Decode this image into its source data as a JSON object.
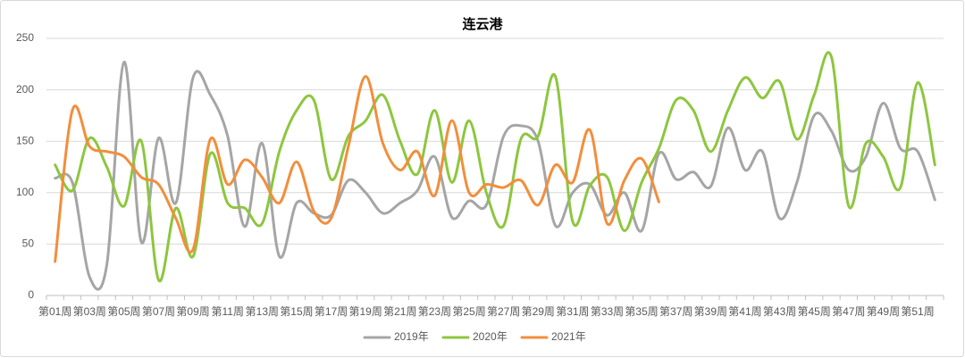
{
  "chart_data": {
    "type": "line",
    "title": "连云港",
    "categories": [
      "第01周",
      null,
      "第03周",
      null,
      "第05周",
      null,
      "第07周",
      null,
      "第09周",
      null,
      "第11周",
      null,
      "第13周",
      null,
      "第15周",
      null,
      "第17周",
      null,
      "第19周",
      null,
      "第21周",
      null,
      "第23周",
      null,
      "第25周",
      null,
      "第27周",
      null,
      "第29周",
      null,
      "第31周",
      null,
      "第33周",
      null,
      "第35周",
      null,
      "第37周",
      null,
      "第39周",
      null,
      "第41周",
      null,
      "第43周",
      null,
      "第45周",
      null,
      "第47周",
      null,
      "第49周",
      null,
      "第51周",
      null
    ],
    "series": [
      {
        "name": "2019年",
        "color": "#a5a5a5",
        "values": [
          114,
          110,
          18,
          30,
          227,
          52,
          153,
          90,
          212,
          195,
          155,
          67,
          148,
          38,
          90,
          80,
          78,
          112,
          100,
          80,
          90,
          102,
          135,
          76,
          92,
          88,
          155,
          165,
          150,
          68,
          100,
          108,
          78,
          100,
          63,
          138,
          113,
          120,
          106,
          163,
          122,
          140,
          75,
          110,
          175,
          160,
          122,
          135,
          187,
          143,
          140,
          93
        ]
      },
      {
        "name": "2020年",
        "color": "#8dc63f",
        "values": [
          127,
          102,
          153,
          125,
          87,
          150,
          15,
          85,
          38,
          138,
          90,
          85,
          70,
          140,
          180,
          190,
          113,
          155,
          170,
          195,
          150,
          118,
          180,
          110,
          170,
          100,
          68,
          152,
          155,
          213,
          72,
          107,
          115,
          63,
          110,
          143,
          190,
          180,
          140,
          180,
          212,
          192,
          208,
          152,
          195,
          232,
          87,
          148,
          135,
          105,
          207,
          127
        ]
      },
      {
        "name": "2021年",
        "color": "#f28e3c",
        "values": [
          33,
          180,
          145,
          140,
          135,
          115,
          108,
          75,
          45,
          152,
          108,
          132,
          115,
          90,
          130,
          82,
          75,
          145,
          213,
          148,
          122,
          140,
          97,
          170,
          100,
          108,
          105,
          112,
          88,
          127,
          110,
          161,
          70,
          112,
          133,
          91,
          null,
          null,
          null,
          null,
          null,
          null,
          null,
          null,
          null,
          null,
          null,
          null,
          null,
          null,
          null,
          null
        ]
      }
    ],
    "ylim": [
      0,
      250
    ],
    "yticks": [
      0,
      50,
      100,
      150,
      200,
      250
    ],
    "grid": true,
    "legend": "bottom"
  }
}
